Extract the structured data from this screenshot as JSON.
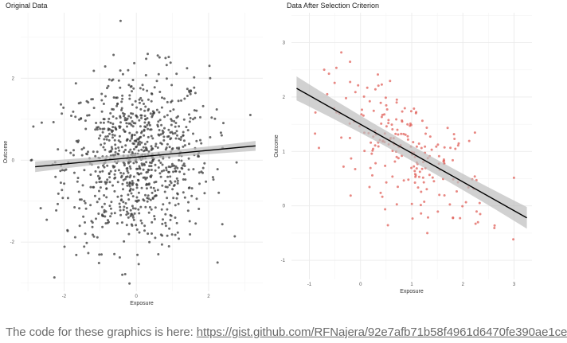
{
  "caption": {
    "text": "The code for these graphics is here: ",
    "link": "https://gist.github.com/RFNajera/92e7afb71b58f4961d6470fe390ae1ce"
  },
  "colors": {
    "left_points": "#3a3a3a",
    "right_points": "#e0605a",
    "ribbon": "#bdbdbd",
    "line": "#000000",
    "grid": "#ebebeb"
  },
  "chart_data": [
    {
      "type": "scatter",
      "title": "Original Data",
      "xlabel": "Exposure",
      "ylabel": "Outcome",
      "xlim": [
        -3.2,
        3.5
      ],
      "ylim": [
        -3.2,
        3.6
      ],
      "xticks": [
        -2,
        0,
        2
      ],
      "yticks": [
        -2,
        0,
        2
      ],
      "grid": true,
      "n_points": 900,
      "point_color": "#3a3a3a",
      "regression": {
        "x": [
          -2.8,
          3.3
        ],
        "y": [
          -0.16,
          0.35
        ],
        "ci_halfwidth": [
          0.13,
          0.12
        ]
      }
    },
    {
      "type": "scatter",
      "title": "Data After Selection Criterion",
      "xlabel": "Exposure",
      "ylabel": "Outcome",
      "xlim": [
        -1.35,
        3.35
      ],
      "ylim": [
        -1.35,
        3.55
      ],
      "xticks": [
        -1,
        0,
        1,
        2,
        3
      ],
      "yticks": [
        -1,
        0,
        1,
        2,
        3
      ],
      "grid": true,
      "n_points": 220,
      "point_color": "#e0605a",
      "regression": {
        "x": [
          -1.25,
          3.25
        ],
        "y": [
          2.16,
          -0.22
        ],
        "ci_halfwidth": [
          0.22,
          0.2
        ]
      }
    }
  ]
}
